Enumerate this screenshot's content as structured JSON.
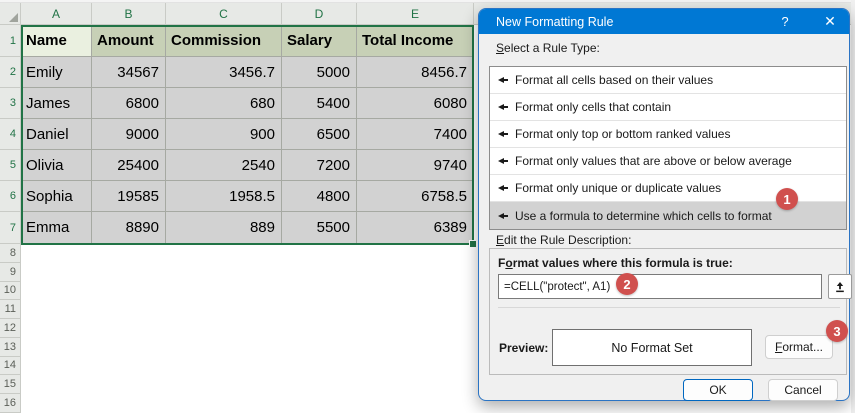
{
  "colors": {
    "selection_green": "#217346",
    "titlebar_blue": "#0078D4",
    "annotation_red": "#D0504E",
    "header_fill_active_cell": "#EAF0E0",
    "header_fill_selected": "#C7D0B6",
    "selected_cell_gray": "#D2D2D2"
  },
  "spreadsheet": {
    "column_headers": [
      "A",
      "B",
      "C",
      "D",
      "E"
    ],
    "row_numbers": [
      1,
      2,
      3,
      4,
      5,
      6,
      7,
      8,
      9,
      10,
      11,
      12,
      13,
      14,
      15,
      16
    ],
    "selected_rows_count": 7,
    "table": {
      "headers": [
        "Name",
        "Amount",
        "Commission",
        "Salary",
        "Total Income"
      ],
      "rows": [
        [
          "Emily",
          "34567",
          "3456.7",
          "5000",
          "8456.7"
        ],
        [
          "James",
          "6800",
          "680",
          "5400",
          "6080"
        ],
        [
          "Daniel",
          "9000",
          "900",
          "6500",
          "7400"
        ],
        [
          "Olivia",
          "25400",
          "2540",
          "7200",
          "9740"
        ],
        [
          "Sophia",
          "19585",
          "1958.5",
          "4800",
          "6758.5"
        ],
        [
          "Emma",
          "8890",
          "889",
          "5500",
          "6389"
        ]
      ]
    }
  },
  "dialog": {
    "title": "New Formatting Rule",
    "window_controls": {
      "help": "?",
      "close": "✕"
    },
    "rule_type_label": {
      "pre": "",
      "accel": "S",
      "post": "elect a Rule Type:"
    },
    "rule_types": [
      "Format all cells based on their values",
      "Format only cells that contain",
      "Format only top or bottom ranked values",
      "Format only values that are above or below average",
      "Format only unique or duplicate values",
      "Use a formula to determine which cells to format"
    ],
    "selected_rule_index": 5,
    "edit_label": {
      "pre": "",
      "accel": "E",
      "post": "dit the Rule Description:"
    },
    "formula_label": {
      "pre": "F",
      "accel": "o",
      "post": "rmat values where this formula is true:"
    },
    "formula_value": "=CELL(\"protect\", A1)",
    "preview_label": "Preview:",
    "preview_value": "No Format Set",
    "format_button": {
      "pre": "",
      "accel": "F",
      "post": "ormat..."
    },
    "ok_button": "OK",
    "cancel_button": "Cancel"
  },
  "annotations": {
    "step1": "1",
    "step2": "2",
    "step3": "3"
  }
}
